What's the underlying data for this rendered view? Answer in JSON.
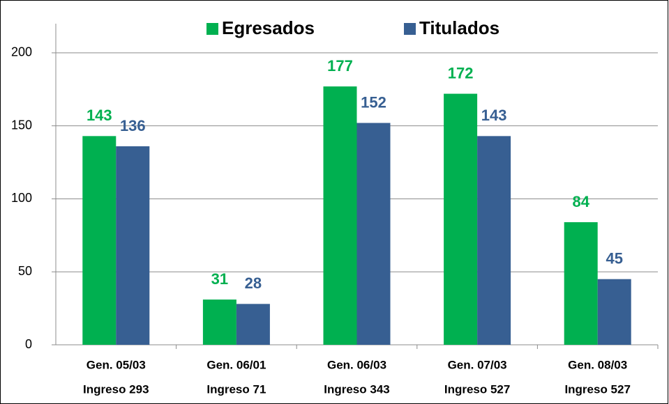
{
  "chart_data": {
    "type": "bar",
    "categories": [
      [
        "Gen. 05/03",
        "Ingreso 293"
      ],
      [
        "Gen. 06/01",
        "Ingreso 71"
      ],
      [
        "Gen. 06/03",
        "Ingreso 343"
      ],
      [
        "Gen. 07/03",
        "Ingreso 527"
      ],
      [
        "Gen. 08/03",
        "Ingreso 527"
      ]
    ],
    "series": [
      {
        "name": "Egresados",
        "color": "#00b050",
        "values": [
          143,
          31,
          177,
          172,
          84
        ]
      },
      {
        "name": "Titulados",
        "color": "#375f92",
        "values": [
          136,
          28,
          152,
          143,
          45
        ]
      }
    ],
    "ylim": [
      0,
      220
    ],
    "yticks": [
      0,
      50,
      100,
      150,
      200
    ],
    "grid": true,
    "legend": "top"
  }
}
